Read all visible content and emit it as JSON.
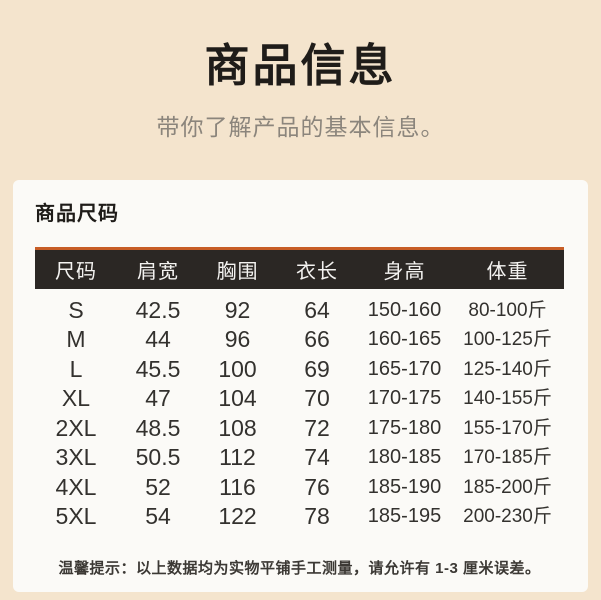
{
  "hero": {
    "title": "商品信息",
    "subtitle": "带你了解产品的基本信息。"
  },
  "card": {
    "section_title": "商品尺码",
    "table": {
      "headers": [
        "尺码",
        "肩宽",
        "胸围",
        "衣长",
        "身高",
        "体重"
      ],
      "rows": [
        [
          "S",
          "42.5",
          "92",
          "64",
          "150-160",
          "80-100斤"
        ],
        [
          "M",
          "44",
          "96",
          "66",
          "160-165",
          "100-125斤"
        ],
        [
          "L",
          "45.5",
          "100",
          "69",
          "165-170",
          "125-140斤"
        ],
        [
          "XL",
          "47",
          "104",
          "70",
          "170-175",
          "140-155斤"
        ],
        [
          "2XL",
          "48.5",
          "108",
          "72",
          "175-180",
          "155-170斤"
        ],
        [
          "3XL",
          "50.5",
          "112",
          "74",
          "180-185",
          "170-185斤"
        ],
        [
          "4XL",
          "52",
          "116",
          "76",
          "185-190",
          "185-200斤"
        ],
        [
          "5XL",
          "54",
          "122",
          "78",
          "185-195",
          "200-230斤"
        ]
      ]
    },
    "note": "温馨提示：以上数据均为实物平铺手工测量，请允许有 1-3 厘米误差。"
  },
  "colors": {
    "background": "#f4e4cd",
    "card": "#fbfaf7",
    "header_bg": "#2b2724",
    "accent_orange": "#c75d26",
    "title_text": "#1f1c19",
    "subtitle_text": "#8b857c",
    "body_text": "#33312e",
    "note_text": "#3c3935"
  }
}
